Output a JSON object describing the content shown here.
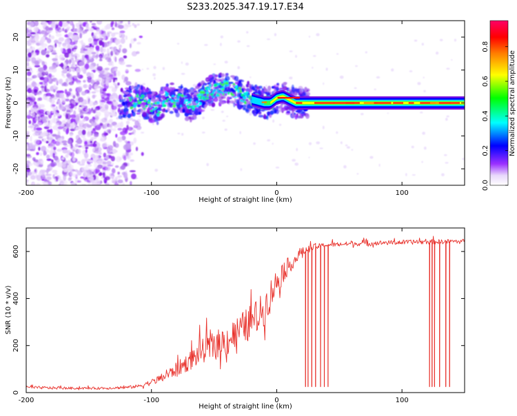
{
  "title": "S233.2025.347.19.17.E34",
  "chart_data": [
    {
      "type": "heatmap",
      "name": "spectrogram",
      "xlabel": "Height of straight line (km)",
      "ylabel": "Frequency (Hz)",
      "xlim": [
        -200,
        150
      ],
      "ylim": [
        -25,
        25
      ],
      "xticks": [
        -200,
        -100,
        0,
        100
      ],
      "yticks": [
        -20,
        -10,
        0,
        10,
        20
      ],
      "ridge_x": [
        -120,
        -110,
        -100,
        -95,
        -90,
        -85,
        -80,
        -75,
        -70,
        -65,
        -60,
        -55,
        -50,
        -45,
        -40,
        -35,
        -30,
        -25,
        -20,
        -15,
        -10,
        -5,
        0,
        5,
        10,
        15,
        20,
        30,
        40,
        60,
        80,
        100,
        120,
        150
      ],
      "ridge_freq": [
        0,
        1,
        -1,
        -2,
        1,
        2,
        0,
        1,
        -1,
        0,
        2,
        3,
        4,
        4,
        5,
        4,
        3,
        2,
        1,
        0.5,
        0,
        0,
        1.5,
        2,
        1,
        0,
        0,
        0,
        0,
        0,
        0,
        0,
        0,
        0
      ],
      "colorbar": {
        "label": "Normalized spectral amplitude",
        "ticks": [
          0.0,
          0.2,
          0.4,
          0.6,
          0.8
        ],
        "range": [
          0.0,
          0.95
        ]
      }
    },
    {
      "type": "line",
      "name": "snr",
      "xlabel": "Height of straight line (km)",
      "ylabel": "SNR (10 * v/v)",
      "xlim": [
        -200,
        150
      ],
      "ylim": [
        0,
        700
      ],
      "xticks": [
        -200,
        -100,
        0,
        100
      ],
      "yticks": [
        0,
        200,
        400,
        600
      ],
      "color": "#e8302a",
      "series": [
        {
          "name": "SNR",
          "x": [
            -200,
            -180,
            -160,
            -140,
            -120,
            -110,
            -100,
            -90,
            -80,
            -70,
            -60,
            -50,
            -40,
            -30,
            -20,
            -10,
            -5,
            0,
            5,
            10,
            15,
            20,
            25,
            30,
            40,
            60,
            80,
            100,
            120,
            150
          ],
          "y": [
            20,
            18,
            17,
            17,
            20,
            25,
            40,
            60,
            90,
            120,
            160,
            180,
            200,
            240,
            280,
            330,
            400,
            450,
            500,
            530,
            560,
            590,
            605,
            615,
            625,
            630,
            633,
            636,
            638,
            640
          ],
          "noise_amplitude": [
            12,
            12,
            10,
            10,
            12,
            15,
            25,
            40,
            60,
            80,
            100,
            120,
            140,
            140,
            150,
            150,
            130,
            120,
            100,
            70,
            50,
            40,
            30,
            25,
            20,
            20,
            20,
            20,
            20,
            20
          ],
          "dropouts_x": [
            23,
            25,
            28,
            31,
            35,
            38,
            41,
            122,
            124,
            126,
            130,
            135,
            138
          ],
          "dropout_value": 25
        }
      ]
    }
  ]
}
